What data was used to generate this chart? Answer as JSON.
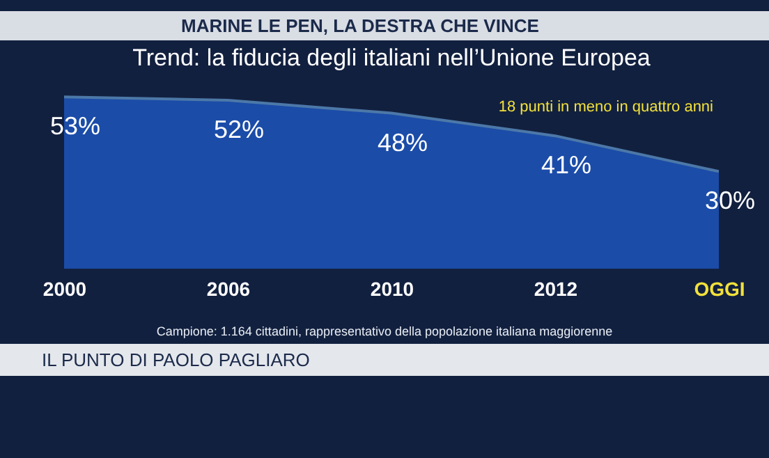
{
  "chart_data": {
    "type": "area",
    "title": "Trend: la fiducia degli italiani nell’Unione Europea",
    "subtitle": "MARINE LE PEN, LA DESTRA CHE VINCE",
    "categories": [
      "2000",
      "2006",
      "2010",
      "2012",
      "OGGI"
    ],
    "series": [
      {
        "color": "#1f5fd6",
        "values": [
          53,
          52,
          48,
          41,
          30
        ],
        "value_labels": [
          "53%",
          "52%",
          "48%",
          "41%",
          "30%"
        ]
      }
    ],
    "tick_labels": "x",
    "annotations": [
      "18 punti in meno in quattro anni",
      "Campione: 1.164 cittadini, rappresentativo della popolazione italiana maggiorenne",
      "IL PUNTO DI PAOLO PAGLIARO"
    ]
  }
}
